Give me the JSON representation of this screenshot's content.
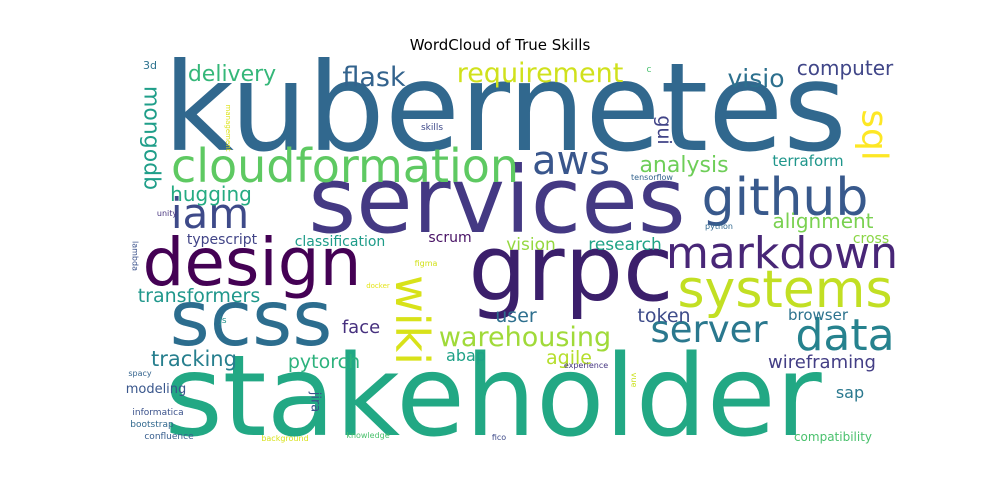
{
  "chart_data": {
    "type": "wordcloud",
    "title": "WordCloud of True Skills",
    "colormap": "viridis",
    "background": "#ffffff",
    "words": [
      {
        "text": "kubernetes",
        "weight": 1.0,
        "color": "#31688e"
      },
      {
        "text": "stakeholder",
        "weight": 0.98,
        "color": "#22a884"
      },
      {
        "text": "services",
        "weight": 0.78,
        "color": "#443983"
      },
      {
        "text": "grpc",
        "weight": 0.78,
        "color": "#3b1f6b"
      },
      {
        "text": "scss",
        "weight": 0.66,
        "color": "#2c6d8e"
      },
      {
        "text": "design",
        "weight": 0.6,
        "color": "#440154"
      },
      {
        "text": "systems",
        "weight": 0.48,
        "color": "#c2df23"
      },
      {
        "text": "github",
        "weight": 0.45,
        "color": "#38598c"
      },
      {
        "text": "markdown",
        "weight": 0.4,
        "color": "#482677"
      },
      {
        "text": "cloudformation",
        "weight": 0.42,
        "color": "#5ec962"
      },
      {
        "text": "wiki",
        "weight": 0.42,
        "color": "#d8e219"
      },
      {
        "text": "data",
        "weight": 0.38,
        "color": "#26828e"
      },
      {
        "text": "iam",
        "weight": 0.38,
        "color": "#3e4a89"
      },
      {
        "text": "aws",
        "weight": 0.36,
        "color": "#39568c"
      },
      {
        "text": "server",
        "weight": 0.34,
        "color": "#2a788e"
      },
      {
        "text": "sql",
        "weight": 0.3,
        "color": "#fde725"
      },
      {
        "text": "warehousing",
        "weight": 0.25,
        "color": "#a0da39"
      },
      {
        "text": "flask",
        "weight": 0.24,
        "color": "#33638d"
      },
      {
        "text": "requirement",
        "weight": 0.24,
        "color": "#d0e11c"
      },
      {
        "text": "visio",
        "weight": 0.23,
        "color": "#2d708e"
      },
      {
        "text": "delivery",
        "weight": 0.2,
        "color": "#35b779"
      },
      {
        "text": "computer",
        "weight": 0.18,
        "color": "#404688"
      },
      {
        "text": "analysis",
        "weight": 0.2,
        "color": "#6ece58"
      },
      {
        "text": "mongodb",
        "weight": 0.2,
        "color": "#1f9e89"
      },
      {
        "text": "gui",
        "weight": 0.17,
        "color": "#414487"
      },
      {
        "text": "hugging",
        "weight": 0.18,
        "color": "#25ab82"
      },
      {
        "text": "alignment",
        "weight": 0.18,
        "color": "#7ad151"
      },
      {
        "text": "terraform",
        "weight": 0.14,
        "color": "#1f968b"
      },
      {
        "text": "tracking",
        "weight": 0.19,
        "color": "#277f8e"
      },
      {
        "text": "transformers",
        "weight": 0.17,
        "color": "#1f978b"
      },
      {
        "text": "agile",
        "weight": 0.17,
        "color": "#b5de2b"
      },
      {
        "text": "token",
        "weight": 0.17,
        "color": "#3e4c8a"
      },
      {
        "text": "pytorch",
        "weight": 0.17,
        "color": "#2db27d"
      },
      {
        "text": "face",
        "weight": 0.16,
        "color": "#46307e"
      },
      {
        "text": "user",
        "weight": 0.17,
        "color": "#2e6f8e"
      },
      {
        "text": "vision",
        "weight": 0.16,
        "color": "#95d840"
      },
      {
        "text": "research",
        "weight": 0.16,
        "color": "#20a386"
      },
      {
        "text": "wireframing",
        "weight": 0.16,
        "color": "#433e85"
      },
      {
        "text": "browser",
        "weight": 0.14,
        "color": "#2c728e"
      },
      {
        "text": "typescript",
        "weight": 0.13,
        "color": "#414487"
      },
      {
        "text": "classification",
        "weight": 0.13,
        "color": "#1e9c89"
      },
      {
        "text": "scrum",
        "weight": 0.13,
        "color": "#471164"
      },
      {
        "text": "cross",
        "weight": 0.13,
        "color": "#8bd646"
      },
      {
        "text": "abap",
        "weight": 0.15,
        "color": "#1fa187"
      },
      {
        "text": "sap",
        "weight": 0.14,
        "color": "#2a788e"
      },
      {
        "text": "jira",
        "weight": 0.12,
        "color": "#3b528b"
      },
      {
        "text": "modeling",
        "weight": 0.11,
        "color": "#39568c"
      },
      {
        "text": "compatibility",
        "weight": 0.11,
        "color": "#4ac16d"
      },
      {
        "text": "3d",
        "weight": 0.09,
        "color": "#2c728e"
      },
      {
        "text": "c",
        "weight": 0.07,
        "color": "#48c16e"
      },
      {
        "text": "skills",
        "weight": 0.06,
        "color": "#3e4989"
      },
      {
        "text": "tensorflow",
        "weight": 0.06,
        "color": "#33638d"
      },
      {
        "text": "python",
        "weight": 0.06,
        "color": "#31688e"
      },
      {
        "text": "lambda",
        "weight": 0.06,
        "color": "#3b528b"
      },
      {
        "text": "unity",
        "weight": 0.06,
        "color": "#46337e"
      },
      {
        "text": "management",
        "weight": 0.05,
        "color": "#dde318"
      },
      {
        "text": "figma",
        "weight": 0.06,
        "color": "#d2e21b"
      },
      {
        "text": "docker",
        "weight": 0.05,
        "color": "#e5e419"
      },
      {
        "text": "js",
        "weight": 0.06,
        "color": "#21918c"
      },
      {
        "text": "spacy",
        "weight": 0.06,
        "color": "#33638d"
      },
      {
        "text": "experience",
        "weight": 0.06,
        "color": "#453581"
      },
      {
        "text": "vue",
        "weight": 0.05,
        "color": "#cae11f"
      },
      {
        "text": "informatica",
        "weight": 0.07,
        "color": "#3b528b"
      },
      {
        "text": "bootstrap",
        "weight": 0.07,
        "color": "#31688e"
      },
      {
        "text": "confluence",
        "weight": 0.07,
        "color": "#365d8d"
      },
      {
        "text": "background",
        "weight": 0.06,
        "color": "#d8e219"
      },
      {
        "text": "knowledge",
        "weight": 0.06,
        "color": "#4ac16d"
      },
      {
        "text": "fico",
        "weight": 0.06,
        "color": "#3e4a89"
      }
    ]
  }
}
